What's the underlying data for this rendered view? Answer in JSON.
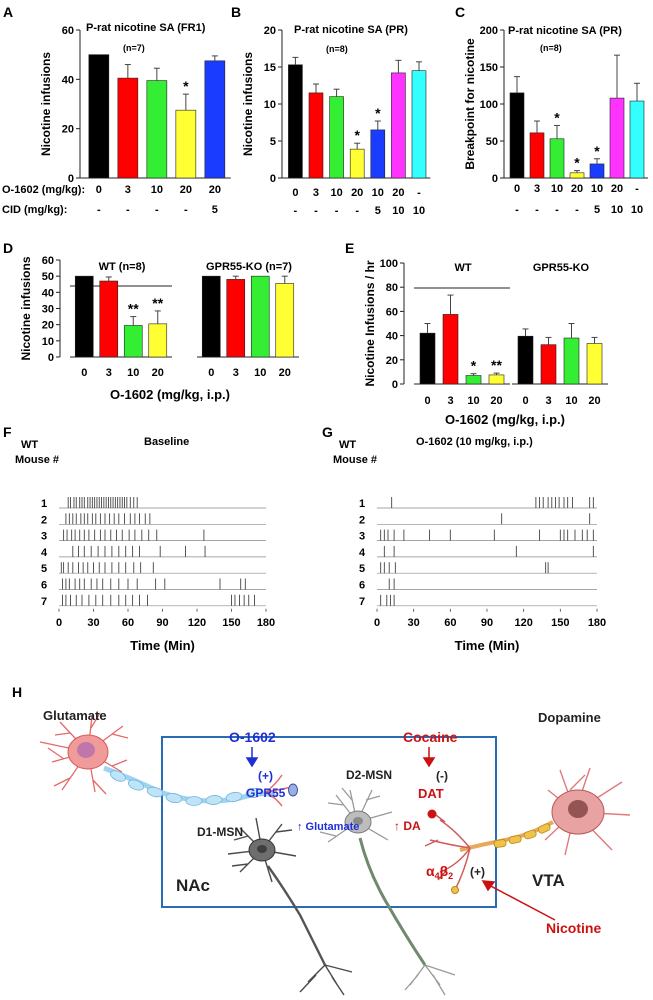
{
  "chart_data": [
    {
      "panel": "A",
      "type": "bar",
      "title": "P-rat nicotine SA (FR1)",
      "n_label": "(n=7)",
      "ylabel": "Nicotine infusions",
      "ylim": [
        0,
        60
      ],
      "yticks": [
        0,
        20,
        40,
        60
      ],
      "row_labels": [
        "O-1602 (mg/kg):",
        "CID (mg/kg):"
      ],
      "rows": [
        [
          "0",
          "3",
          "10",
          "20",
          "20"
        ],
        [
          "-",
          "-",
          "-",
          "-",
          "5"
        ]
      ],
      "values": [
        50,
        40.5,
        39.5,
        27.5,
        47.5
      ],
      "errors": [
        0,
        5.5,
        5,
        6.5,
        2
      ],
      "colors": [
        "#000000",
        "#ff0000",
        "#33ee33",
        "#ffff33",
        "#1a3cff"
      ],
      "sig": [
        "",
        "",
        "",
        "*",
        ""
      ]
    },
    {
      "panel": "B",
      "type": "bar",
      "title": "P-rat nicotine SA (PR)",
      "n_label": "(n=8)",
      "ylabel": "Nicotine infusions",
      "ylim": [
        0,
        20
      ],
      "yticks": [
        0,
        5,
        10,
        15,
        20
      ],
      "rows": [
        [
          "0",
          "3",
          "10",
          "20",
          "10",
          "20",
          "-"
        ],
        [
          "-",
          "-",
          "-",
          "-",
          "5",
          "10",
          "10"
        ]
      ],
      "values": [
        15.3,
        11.5,
        11,
        3.9,
        6.5,
        14.2,
        14.5
      ],
      "errors": [
        1,
        1.2,
        1,
        0.8,
        1.2,
        1.7,
        1.2
      ],
      "colors": [
        "#000000",
        "#ff0000",
        "#33ee33",
        "#ffff33",
        "#1a3cff",
        "#ff33ff",
        "#33ffff"
      ],
      "sig": [
        "",
        "",
        "",
        "*",
        "*",
        "",
        ""
      ]
    },
    {
      "panel": "C",
      "type": "bar",
      "title": "P-rat nicotine SA (PR)",
      "n_label": "(n=8)",
      "ylabel": "Breakpoint for nicotine",
      "ylim": [
        0,
        200
      ],
      "yticks": [
        0,
        50,
        100,
        150,
        200
      ],
      "rows": [
        [
          "0",
          "3",
          "10",
          "20",
          "10",
          "20",
          "-"
        ],
        [
          "-",
          "-",
          "-",
          "-",
          "5",
          "10",
          "10"
        ]
      ],
      "values": [
        115,
        61,
        53,
        7,
        19,
        108,
        104
      ],
      "errors": [
        22,
        16,
        18,
        3,
        7,
        58,
        24
      ],
      "colors": [
        "#000000",
        "#ff0000",
        "#33ee33",
        "#ffff33",
        "#1a3cff",
        "#ff33ff",
        "#33ffff"
      ],
      "sig": [
        "",
        "",
        "*",
        "*",
        "*",
        "",
        ""
      ]
    },
    {
      "panel": "D",
      "type": "bar",
      "ylabel": "Nicotine infusions",
      "xlabel": "O-1602 (mg/kg, i.p.)",
      "ylim": [
        0,
        60
      ],
      "yticks": [
        0,
        10,
        20,
        30,
        40,
        50,
        60
      ],
      "categories": [
        "0",
        "3",
        "10",
        "20"
      ],
      "groups": [
        {
          "name": "WT (n=8)",
          "values": [
            50,
            47,
            19.5,
            20.5
          ],
          "errors": [
            0,
            2.5,
            5.5,
            8
          ],
          "sig": [
            "",
            "",
            "**",
            "**"
          ]
        },
        {
          "name": "GPR55-KO (n=7)",
          "values": [
            50,
            48,
            50,
            45.5
          ],
          "errors": [
            0,
            2,
            0,
            4.5
          ],
          "sig": [
            "",
            "",
            "",
            ""
          ]
        }
      ],
      "colors": [
        "#000000",
        "#ff0000",
        "#33ee33",
        "#ffff33"
      ]
    },
    {
      "panel": "E",
      "type": "bar",
      "ylabel": "Nicotine Infusions / hr",
      "xlabel": "O-1602 (mg/kg, i.p.)",
      "ylim": [
        0,
        100
      ],
      "yticks": [
        0,
        20,
        40,
        60,
        80,
        100
      ],
      "categories": [
        "0",
        "3",
        "10",
        "20"
      ],
      "groups": [
        {
          "name": "WT",
          "values": [
            42,
            57.5,
            7,
            7.5
          ],
          "errors": [
            8,
            16,
            1.5,
            1.5
          ],
          "sig": [
            "",
            "",
            "*",
            "**"
          ]
        },
        {
          "name": "GPR55-KO",
          "values": [
            39.5,
            32.5,
            38,
            33.5
          ],
          "errors": [
            6,
            6,
            12,
            5
          ],
          "sig": [
            "",
            "",
            "",
            ""
          ]
        }
      ],
      "colors": [
        "#000000",
        "#ff0000",
        "#33ee33",
        "#ffff33"
      ]
    },
    {
      "panel": "F",
      "type": "raster",
      "title": "Baseline",
      "group_label": "WT",
      "row_axis_label": "Mouse #",
      "xlabel": "Time (Min)",
      "xlim": [
        0,
        180
      ],
      "xticks": [
        0,
        30,
        60,
        90,
        120,
        150,
        180
      ],
      "rows": [
        {
          "mouse": "1",
          "events": [
            8,
            10,
            13,
            15,
            18,
            20,
            22,
            25,
            27,
            29,
            31,
            33,
            35,
            37,
            39,
            41,
            43,
            45,
            47,
            49,
            51,
            53,
            55,
            57,
            59,
            62,
            65,
            68
          ]
        },
        {
          "mouse": "2",
          "events": [
            6,
            9,
            12,
            15,
            19,
            22,
            25,
            29,
            32,
            36,
            40,
            44,
            48,
            52,
            57,
            62,
            66,
            70,
            75,
            79
          ]
        },
        {
          "mouse": "3",
          "events": [
            4,
            7,
            11,
            14,
            18,
            22,
            26,
            31,
            36,
            40,
            45,
            50,
            55,
            61,
            66,
            72,
            78,
            85,
            126
          ]
        },
        {
          "mouse": "4",
          "events": [
            12,
            17,
            22,
            28,
            34,
            40,
            46,
            52,
            58,
            64,
            70,
            88,
            110,
            127
          ]
        },
        {
          "mouse": "5",
          "events": [
            2,
            4,
            8,
            12,
            17,
            21,
            25,
            30,
            35,
            40,
            46,
            52,
            58,
            65,
            71,
            82
          ]
        },
        {
          "mouse": "6",
          "events": [
            3,
            6,
            9,
            14,
            18,
            22,
            28,
            33,
            38,
            45,
            52,
            60,
            68,
            84,
            92,
            140,
            158,
            162
          ]
        },
        {
          "mouse": "7",
          "events": [
            3,
            6,
            10,
            15,
            20,
            26,
            32,
            38,
            45,
            52,
            58,
            64,
            70,
            77,
            150,
            153,
            157,
            161,
            165,
            170
          ]
        }
      ]
    },
    {
      "panel": "G",
      "type": "raster",
      "title": "O-1602 (10 mg/kg, i.p.)",
      "group_label": "WT",
      "row_axis_label": "Mouse #",
      "xlabel": "Time (Min)",
      "xlim": [
        0,
        180
      ],
      "xticks": [
        0,
        30,
        60,
        90,
        120,
        150,
        180
      ],
      "rows": [
        {
          "mouse": "1",
          "events": [
            12,
            130,
            133,
            136,
            140,
            143,
            146,
            149,
            153,
            156,
            160,
            174,
            177
          ]
        },
        {
          "mouse": "2",
          "events": [
            102,
            174
          ]
        },
        {
          "mouse": "3",
          "events": [
            3,
            6,
            9,
            14,
            22,
            43,
            60,
            96,
            133,
            150,
            153,
            156,
            162,
            168,
            172,
            177
          ]
        },
        {
          "mouse": "4",
          "events": [
            6,
            14,
            114,
            177
          ]
        },
        {
          "mouse": "5",
          "events": [
            3,
            6,
            10,
            15,
            138,
            140
          ]
        },
        {
          "mouse": "6",
          "events": [
            10,
            14
          ]
        },
        {
          "mouse": "7",
          "events": [
            3,
            8,
            11,
            14
          ]
        }
      ]
    }
  ],
  "panel_letters": {
    "A": "A",
    "B": "B",
    "C": "C",
    "D": "D",
    "E": "E",
    "F": "F",
    "G": "G",
    "H": "H"
  },
  "diagram": {
    "glutamate": "Glutamate",
    "dopamine": "Dopamine",
    "o1602": "O-1602",
    "plus": "(+)",
    "gpr55": "GPR55",
    "up_glutamate": "↑ Glutamate",
    "cocaine": "Cocaine",
    "minus": "(-)",
    "dat": "DAT",
    "d2msn": "D2-MSN",
    "up_da": "↑ DA",
    "d1msn": "D1-MSN",
    "nac": "NAc",
    "vta": "VTA",
    "alpha": "α",
    "alpha_sub": "4",
    "beta": "β",
    "beta_sub": "2",
    "receptor_plus": "(+)",
    "nicotine": "Nicotine",
    "colors": {
      "blue": "#1f2fd6",
      "red": "#cc1111",
      "box": "#2a6bb5",
      "axon": "#bfe3f7",
      "myelin": "#e9b23a"
    }
  }
}
